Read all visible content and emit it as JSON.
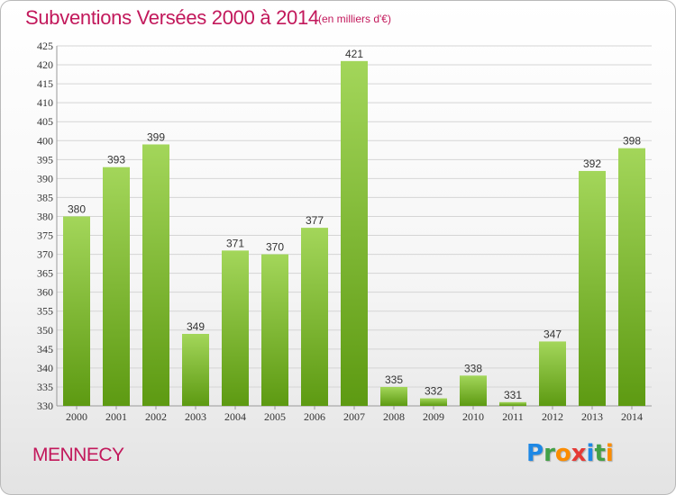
{
  "title": "Subventions Versées 2000 à 2014",
  "subtitle": "(en milliers d'€)",
  "location": "MENNECY",
  "logo": {
    "letters": [
      "P",
      "r",
      "o",
      "x",
      "i",
      "t",
      "i"
    ],
    "colors": [
      "#1e88e5",
      "#43a047",
      "#fb8c00",
      "#e53935",
      "#1e88e5",
      "#43a047",
      "#fb8c00"
    ]
  },
  "colors": {
    "title": "#c2185b",
    "bar_light": "#a3d65a",
    "bar_dark": "#5d9a12",
    "grid": "#d5d5d5",
    "axis_text": "#333333"
  },
  "chart_data": {
    "type": "bar",
    "categories": [
      "2000",
      "2001",
      "2002",
      "2003",
      "2004",
      "2005",
      "2006",
      "2007",
      "2008",
      "2009",
      "2010",
      "2011",
      "2012",
      "2013",
      "2014"
    ],
    "values": [
      380,
      393,
      399,
      349,
      371,
      370,
      377,
      421,
      335,
      332,
      338,
      331,
      347,
      392,
      398
    ],
    "ylim": [
      330,
      425
    ],
    "yticks": [
      330,
      335,
      340,
      345,
      350,
      355,
      360,
      365,
      370,
      375,
      380,
      385,
      390,
      395,
      400,
      405,
      410,
      415,
      420,
      425
    ],
    "grid": true,
    "xlabel": "",
    "ylabel": ""
  }
}
